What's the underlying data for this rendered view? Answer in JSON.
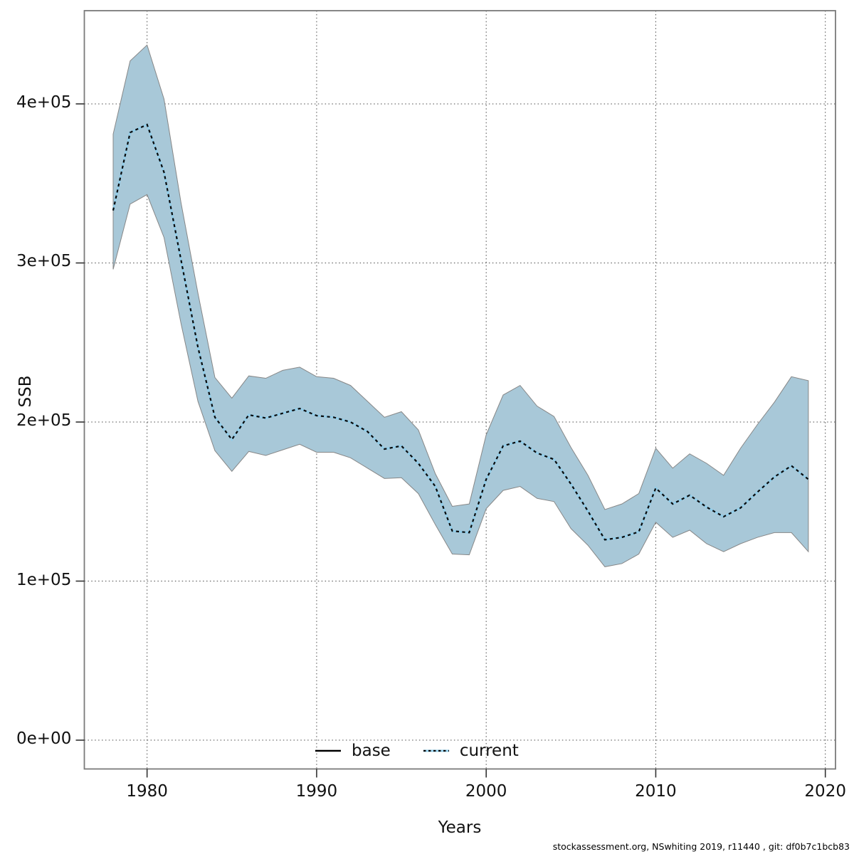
{
  "figure": {
    "footer": "stockassessment.org, NSwhiting 2019, r11440 , git: df0b7c1bcb83"
  },
  "chart_data": {
    "type": "line",
    "title": "",
    "xlabel": "Years",
    "ylabel": "SSB",
    "grid": "dotted",
    "x_range": [
      1976.3,
      2020.6
    ],
    "y_range": [
      -18100,
      458600
    ],
    "x_ticks": [
      1980,
      1990,
      2000,
      2010,
      2020
    ],
    "y_ticks": [
      {
        "value": 0,
        "label": "0e+00"
      },
      {
        "value": 100000,
        "label": "1e+05"
      },
      {
        "value": 200000,
        "label": "2e+05"
      },
      {
        "value": 300000,
        "label": "3e+05"
      },
      {
        "value": 400000,
        "label": "4e+05"
      }
    ],
    "legend": {
      "position": "bottom-center",
      "items": [
        {
          "label": "base",
          "style": "solid-black"
        },
        {
          "label": "current",
          "style": "dotted-lightblue"
        }
      ]
    },
    "colors": {
      "band_fill": "#a8c8d8",
      "band_edge": "#878787",
      "line_underlay": "#92cde9",
      "line_dash": "#0a0a0a",
      "grid": "#4a4a4a",
      "panel_border": "#7a7a7a",
      "tick": "#333333"
    },
    "x": [
      1978,
      1979,
      1980,
      1981,
      1982,
      1983,
      1984,
      1985,
      1986,
      1987,
      1988,
      1989,
      1990,
      1991,
      1992,
      1993,
      1994,
      1995,
      1996,
      1997,
      1998,
      1999,
      2000,
      2001,
      2002,
      2003,
      2004,
      2005,
      2006,
      2007,
      2008,
      2009,
      2010,
      2011,
      2012,
      2013,
      2014,
      2015,
      2016,
      2017,
      2018,
      2019
    ],
    "series": [
      {
        "name": "current",
        "role": "median-line",
        "values": [
          333000,
          382000,
          387000,
          357000,
          302000,
          247000,
          203000,
          189000,
          204500,
          202500,
          205500,
          208500,
          204000,
          203000,
          200000,
          194000,
          183000,
          185000,
          174000,
          159500,
          131500,
          130500,
          164000,
          185000,
          188000,
          180500,
          176500,
          161000,
          144000,
          126000,
          127500,
          131000,
          158500,
          148500,
          154000,
          146500,
          140500,
          146000,
          156000,
          165500,
          172500,
          164000
        ]
      },
      {
        "name": "current_confidence_band",
        "role": "band",
        "upper": [
          381000,
          427000,
          437000,
          403000,
          338000,
          281000,
          228000,
          215000,
          229000,
          227500,
          232500,
          234500,
          228500,
          227500,
          223000,
          213000,
          203000,
          206500,
          195000,
          167500,
          147000,
          148500,
          192000,
          217000,
          223000,
          210000,
          203500,
          184000,
          166500,
          145000,
          148500,
          155000,
          183500,
          171000,
          180000,
          174000,
          166500,
          183500,
          198500,
          212500,
          228500,
          226000
        ],
        "lower": [
          296000,
          337000,
          343000,
          316000,
          262000,
          213000,
          182000,
          169000,
          181500,
          179000,
          182500,
          186000,
          181000,
          181000,
          177500,
          171000,
          164500,
          165000,
          155000,
          135500,
          117000,
          116500,
          145500,
          157000,
          159500,
          152000,
          150000,
          133000,
          122500,
          109000,
          111000,
          117000,
          137000,
          127500,
          132000,
          123500,
          118500,
          123500,
          127500,
          130500,
          130500,
          118500
        ]
      }
    ]
  }
}
